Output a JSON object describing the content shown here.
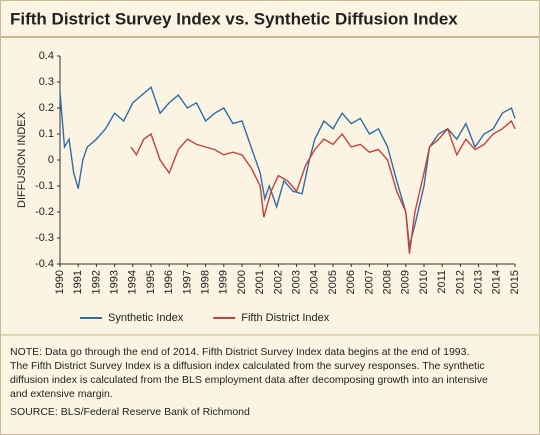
{
  "chart_data": {
    "type": "line",
    "title": "Fifth District Survey Index vs. Synthetic Diffusion Index",
    "ylabel": "DIFFUSION INDEX",
    "xlim": [
      1990,
      2015
    ],
    "xticks": [
      1990,
      1991,
      1992,
      1993,
      1994,
      1995,
      1996,
      1997,
      1998,
      1999,
      2000,
      2001,
      2002,
      2003,
      2004,
      2005,
      2006,
      2007,
      2008,
      2009,
      2010,
      2011,
      2012,
      2013,
      2014,
      2015
    ],
    "ylim": [
      -0.4,
      0.4
    ],
    "yticks": [
      -0.4,
      -0.3,
      -0.2,
      -0.1,
      0,
      0.1,
      0.2,
      0.3,
      0.4
    ],
    "grid": false,
    "legend": "bottom",
    "series": [
      {
        "name": "Synthetic Index",
        "color": "#2f6da8",
        "x": [
          1990.0,
          1990.25,
          1990.5,
          1990.75,
          1991.0,
          1991.25,
          1991.5,
          1992.0,
          1992.5,
          1993.0,
          1993.5,
          1994.0,
          1994.5,
          1995.0,
          1995.5,
          1996.0,
          1996.5,
          1997.0,
          1997.5,
          1998.0,
          1998.5,
          1999.0,
          1999.5,
          2000.0,
          2000.5,
          2001.0,
          2001.25,
          2001.5,
          2001.9,
          2002.3,
          2002.8,
          2003.3,
          2003.7,
          2004.0,
          2004.5,
          2005.0,
          2005.5,
          2006.0,
          2006.5,
          2007.0,
          2007.5,
          2008.0,
          2008.5,
          2009.0,
          2009.2,
          2009.5,
          2010.0,
          2010.3,
          2010.8,
          2011.3,
          2011.8,
          2012.3,
          2012.8,
          2013.3,
          2013.8,
          2014.3,
          2014.8,
          2015.0
        ],
        "values": [
          0.26,
          0.05,
          0.08,
          -0.05,
          -0.11,
          0.0,
          0.05,
          0.08,
          0.12,
          0.18,
          0.15,
          0.22,
          0.25,
          0.28,
          0.18,
          0.22,
          0.25,
          0.2,
          0.22,
          0.15,
          0.18,
          0.2,
          0.14,
          0.15,
          0.05,
          -0.05,
          -0.15,
          -0.1,
          -0.18,
          -0.08,
          -0.12,
          -0.13,
          0.0,
          0.08,
          0.15,
          0.12,
          0.18,
          0.14,
          0.16,
          0.1,
          0.12,
          0.05,
          -0.08,
          -0.2,
          -0.33,
          -0.25,
          -0.1,
          0.05,
          0.1,
          0.12,
          0.08,
          0.14,
          0.05,
          0.1,
          0.12,
          0.18,
          0.2,
          0.16
        ]
      },
      {
        "name": "Fifth District Index",
        "color": "#c8413a",
        "x": [
          1993.9,
          1994.2,
          1994.6,
          1995.0,
          1995.5,
          1996.0,
          1996.5,
          1997.0,
          1997.5,
          1998.0,
          1998.5,
          1999.0,
          1999.5,
          2000.0,
          2000.5,
          2001.0,
          2001.2,
          2001.6,
          2002.0,
          2002.5,
          2003.0,
          2003.5,
          2004.0,
          2004.5,
          2005.0,
          2005.5,
          2006.0,
          2006.5,
          2007.0,
          2007.5,
          2008.0,
          2008.5,
          2009.0,
          2009.2,
          2009.5,
          2010.0,
          2010.3,
          2010.8,
          2011.3,
          2011.8,
          2012.3,
          2012.8,
          2013.3,
          2013.8,
          2014.3,
          2014.8,
          2015.0
        ],
        "values": [
          0.05,
          0.02,
          0.08,
          0.1,
          0.0,
          -0.05,
          0.04,
          0.08,
          0.06,
          0.05,
          0.04,
          0.02,
          0.03,
          0.02,
          -0.03,
          -0.1,
          -0.22,
          -0.12,
          -0.06,
          -0.08,
          -0.12,
          -0.02,
          0.04,
          0.08,
          0.06,
          0.1,
          0.05,
          0.06,
          0.03,
          0.04,
          0.0,
          -0.12,
          -0.2,
          -0.36,
          -0.2,
          -0.05,
          0.05,
          0.08,
          0.12,
          0.02,
          0.08,
          0.04,
          0.06,
          0.1,
          0.12,
          0.15,
          0.12
        ]
      }
    ]
  },
  "footer": {
    "note_label": "NOTE:",
    "note_lines": [
      "Data go through the end of 2014. Fifth District Survey Index data begins at the end of 1993.",
      "The Fifth District Survey Index is a diffusion index calculated from the survey responses. The synthetic",
      "diffusion index is calculated from the BLS employment data after decomposing  growth into an intensive",
      "and extensive margin."
    ],
    "source_label": "SOURCE:",
    "source": "BLS/Federal Reserve Bank of Richmond"
  }
}
